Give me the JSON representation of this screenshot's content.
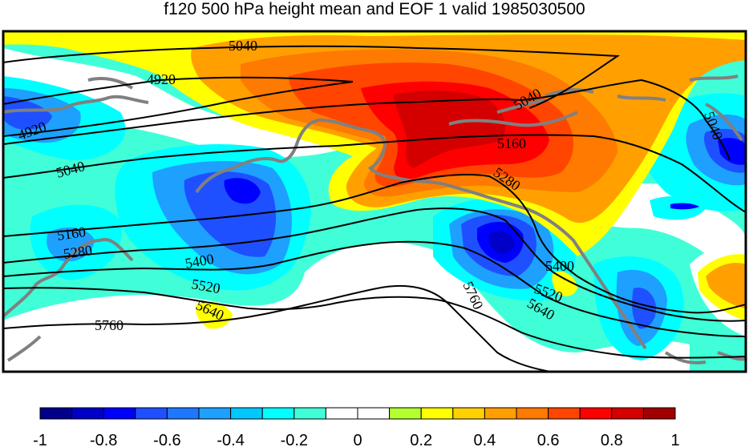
{
  "title": "f120 500 hPa height mean and EOF 1 valid 1985030500",
  "colorbar": {
    "colors": [
      "#00008b",
      "#0000c8",
      "#0000ff",
      "#1e50ff",
      "#1e78ff",
      "#1ea0ff",
      "#00c8ff",
      "#00ffff",
      "#40ffd8",
      "#ffffff",
      "#ffffff",
      "#b4ff30",
      "#ffff00",
      "#ffd000",
      "#ffa000",
      "#ff7a00",
      "#ff4500",
      "#ff0000",
      "#d40000",
      "#a00000"
    ],
    "ticks": [
      "-1",
      "-0.8",
      "-0.6",
      "-0.4",
      "-0.2",
      "0",
      "0.2",
      "0.4",
      "0.6",
      "0.8",
      "1"
    ]
  },
  "contour_labels": [
    "5040",
    "4920",
    "4920",
    "5040",
    "5040",
    "5040",
    "5160",
    "5160",
    "5280",
    "5280",
    "5400",
    "5400",
    "5520",
    "5520",
    "5640",
    "5640",
    "5760",
    "5760"
  ],
  "colors": {
    "frame": "#000000",
    "coastline": "#808080",
    "contour": "#000000"
  }
}
